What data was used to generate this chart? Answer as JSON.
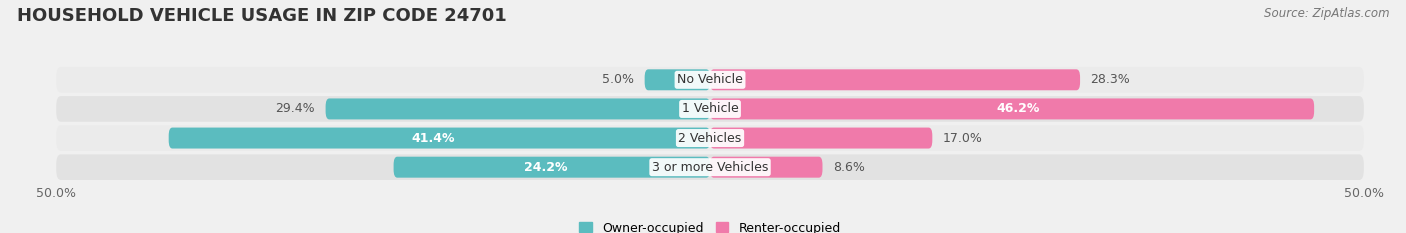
{
  "title": "HOUSEHOLD VEHICLE USAGE IN ZIP CODE 24701",
  "source": "Source: ZipAtlas.com",
  "categories": [
    "No Vehicle",
    "1 Vehicle",
    "2 Vehicles",
    "3 or more Vehicles"
  ],
  "owner_values": [
    5.0,
    29.4,
    41.4,
    24.2
  ],
  "renter_values": [
    28.3,
    46.2,
    17.0,
    8.6
  ],
  "owner_color": "#5bbcbf",
  "renter_color": "#f07aaa",
  "owner_label_colors": [
    "#555555",
    "#555555",
    "#ffffff",
    "#ffffff"
  ],
  "renter_label_colors": [
    "#555555",
    "#ffffff",
    "#555555",
    "#555555"
  ],
  "bar_height": 0.72,
  "xlim": [
    -50,
    50
  ],
  "xticklabels": [
    "50.0%",
    "50.0%"
  ],
  "background_color": "#f0f0f0",
  "row_colors_light": [
    "#ebebeb",
    "#e2e2e2"
  ],
  "title_fontsize": 13,
  "source_fontsize": 8.5,
  "label_fontsize": 9,
  "category_fontsize": 9,
  "legend_fontsize": 9,
  "tick_fontsize": 9
}
